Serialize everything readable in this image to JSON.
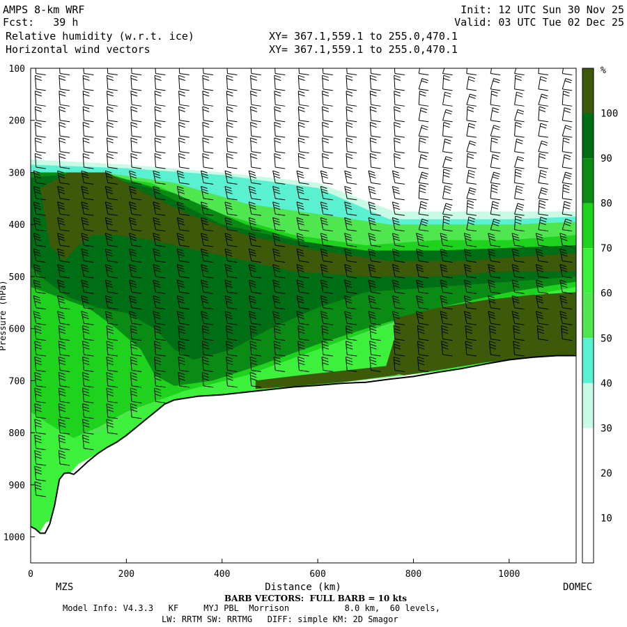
{
  "header": {
    "model": "AMPS 8-km WRF",
    "forecast": "Fcst:   39 h",
    "field1": "Relative humidity (w.r.t. ice)",
    "field2": "Horizontal wind vectors",
    "init": "Init: 12 UTC Sun 30 Nov 25",
    "valid": "Valid: 03 UTC Tue 02 Dec 25",
    "xy1": "XY= 367.1,559.1 to 255.0,470.1",
    "xy2": "XY= 367.1,559.1 to 255.0,470.1"
  },
  "footer": {
    "barb_note": "BARB VECTORS:  FULL BARB = 10 kts",
    "model_info": "Model Info: V4.3.3   KF     MYJ PBL  Morrison           8.0 km,  60 levels,",
    "physics": "LW: RRTM SW: RRTMG   DIFF: simple KM: 2D Smagor"
  },
  "chart_data": {
    "type": "heatmap",
    "title": "Relative humidity (w.r.t. ice)",
    "xlabel": "Distance (km)",
    "ylabel": "Pressure (hPa)",
    "xlim": [
      0,
      1140
    ],
    "ylim": [
      1050,
      100
    ],
    "y_reversed": true,
    "x_ticks": [
      0,
      200,
      400,
      600,
      800,
      1000
    ],
    "y_ticks": [
      100,
      200,
      300,
      400,
      500,
      600,
      700,
      800,
      900,
      1000
    ],
    "endpoint_labels": {
      "left": "MZS",
      "right": "DOMEC"
    },
    "colorbar": {
      "unit": "%",
      "levels": [
        10,
        20,
        30,
        40,
        50,
        60,
        70,
        80,
        90,
        100
      ],
      "colors": [
        "#ffffff",
        "#ffffff",
        "#ffffff",
        "#c8fae6",
        "#5af0d2",
        "#50e650",
        "#3cf03c",
        "#1ed21e",
        "#0a8c14",
        "#006e14",
        "#3c5a0a"
      ]
    },
    "terrain_pressure": [
      {
        "x": 0,
        "p": 980
      },
      {
        "x": 10,
        "p": 985
      },
      {
        "x": 20,
        "p": 993
      },
      {
        "x": 30,
        "p": 993
      },
      {
        "x": 40,
        "p": 975
      },
      {
        "x": 50,
        "p": 940
      },
      {
        "x": 60,
        "p": 890
      },
      {
        "x": 70,
        "p": 878
      },
      {
        "x": 80,
        "p": 877
      },
      {
        "x": 90,
        "p": 880
      },
      {
        "x": 100,
        "p": 872
      },
      {
        "x": 120,
        "p": 855
      },
      {
        "x": 140,
        "p": 840
      },
      {
        "x": 160,
        "p": 828
      },
      {
        "x": 180,
        "p": 818
      },
      {
        "x": 200,
        "p": 805
      },
      {
        "x": 220,
        "p": 790
      },
      {
        "x": 240,
        "p": 775
      },
      {
        "x": 260,
        "p": 760
      },
      {
        "x": 280,
        "p": 745
      },
      {
        "x": 300,
        "p": 737
      },
      {
        "x": 350,
        "p": 730
      },
      {
        "x": 400,
        "p": 727
      },
      {
        "x": 450,
        "p": 722
      },
      {
        "x": 500,
        "p": 717
      },
      {
        "x": 550,
        "p": 712
      },
      {
        "x": 600,
        "p": 709
      },
      {
        "x": 650,
        "p": 705
      },
      {
        "x": 700,
        "p": 703
      },
      {
        "x": 750,
        "p": 697
      },
      {
        "x": 800,
        "p": 692
      },
      {
        "x": 850,
        "p": 684
      },
      {
        "x": 900,
        "p": 677
      },
      {
        "x": 950,
        "p": 668
      },
      {
        "x": 1000,
        "p": 660
      },
      {
        "x": 1050,
        "p": 655
      },
      {
        "x": 1100,
        "p": 652
      },
      {
        "x": 1140,
        "p": 652
      }
    ],
    "top_of_moist_layer": [
      {
        "x": 0,
        "p": 270
      },
      {
        "x": 100,
        "p": 272
      },
      {
        "x": 200,
        "p": 282
      },
      {
        "x": 300,
        "p": 290
      },
      {
        "x": 400,
        "p": 300
      },
      {
        "x": 500,
        "p": 310
      },
      {
        "x": 600,
        "p": 330
      },
      {
        "x": 700,
        "p": 360
      },
      {
        "x": 750,
        "p": 380
      },
      {
        "x": 800,
        "p": 385
      },
      {
        "x": 900,
        "p": 385
      },
      {
        "x": 1000,
        "p": 380
      },
      {
        "x": 1140,
        "p": 375
      }
    ],
    "rh_fields": [
      {
        "name": "rh_30",
        "level": 30,
        "polygon": [
          [
            0,
            275
          ],
          [
            200,
            285
          ],
          [
            400,
            300
          ],
          [
            600,
            320
          ],
          [
            760,
            375
          ],
          [
            1000,
            375
          ],
          [
            1140,
            375
          ],
          [
            1140,
            650
          ],
          [
            0,
            650
          ]
        ]
      },
      {
        "name": "rh_40",
        "level": 40,
        "polygon": [
          [
            0,
            285
          ],
          [
            200,
            292
          ],
          [
            400,
            305
          ],
          [
            600,
            330
          ],
          [
            750,
            390
          ],
          [
            1000,
            390
          ],
          [
            1140,
            385
          ],
          [
            1140,
            652
          ],
          [
            0,
            652
          ]
        ]
      },
      {
        "name": "rh_50",
        "level": 50,
        "polygon": [
          [
            0,
            300
          ],
          [
            150,
            300
          ],
          [
            300,
            320
          ],
          [
            450,
            360
          ],
          [
            600,
            380
          ],
          [
            750,
            400
          ],
          [
            1000,
            400
          ],
          [
            1140,
            395
          ],
          [
            1140,
            652
          ],
          [
            300,
            740
          ],
          [
            180,
            820
          ],
          [
            100,
            850
          ],
          [
            70,
            900
          ],
          [
            40,
            970
          ],
          [
            0,
            980
          ]
        ]
      },
      {
        "name": "rh_60_lower",
        "level": 60,
        "polygon": [
          [
            0,
            740
          ],
          [
            40,
            780
          ],
          [
            80,
            800
          ],
          [
            110,
            800
          ],
          [
            140,
            800
          ],
          [
            190,
            770
          ],
          [
            260,
            740
          ],
          [
            320,
            720
          ],
          [
            400,
            700
          ],
          [
            500,
            670
          ],
          [
            600,
            640
          ],
          [
            700,
            610
          ],
          [
            800,
            580
          ],
          [
            900,
            560
          ],
          [
            1000,
            540
          ],
          [
            1140,
            520
          ],
          [
            1140,
            652
          ],
          [
            300,
            740
          ],
          [
            180,
            820
          ],
          [
            100,
            860
          ],
          [
            60,
            900
          ],
          [
            40,
            960
          ],
          [
            20,
            990
          ],
          [
            0,
            982
          ]
        ]
      },
      {
        "name": "rh_70",
        "level": 70,
        "polygon": [
          [
            0,
            320
          ],
          [
            100,
            300
          ],
          [
            250,
            320
          ],
          [
            400,
            380
          ],
          [
            550,
            420
          ],
          [
            700,
            440
          ],
          [
            850,
            430
          ],
          [
            1000,
            430
          ],
          [
            1140,
            420
          ],
          [
            1140,
            520
          ],
          [
            900,
            560
          ],
          [
            750,
            590
          ],
          [
            600,
            640
          ],
          [
            450,
            690
          ],
          [
            320,
            720
          ],
          [
            260,
            740
          ],
          [
            200,
            760
          ],
          [
            140,
            790
          ],
          [
            90,
            810
          ],
          [
            50,
            790
          ],
          [
            0,
            760
          ]
        ]
      },
      {
        "name": "rh_80",
        "level": 80,
        "polygon": [
          [
            0,
            300
          ],
          [
            150,
            300
          ],
          [
            300,
            340
          ],
          [
            450,
            400
          ],
          [
            600,
            440
          ],
          [
            750,
            470
          ],
          [
            900,
            460
          ],
          [
            1140,
            450
          ],
          [
            1140,
            510
          ],
          [
            1000,
            530
          ],
          [
            850,
            560
          ],
          [
            700,
            600
          ],
          [
            600,
            630
          ],
          [
            480,
            670
          ],
          [
            380,
            700
          ],
          [
            300,
            710
          ],
          [
            260,
            690
          ],
          [
            230,
            640
          ],
          [
            180,
            600
          ],
          [
            120,
            560
          ],
          [
            60,
            540
          ],
          [
            0,
            520
          ]
        ]
      },
      {
        "name": "rh_90",
        "level": 90,
        "polygon": [
          [
            0,
            310
          ],
          [
            120,
            300
          ],
          [
            250,
            330
          ],
          [
            400,
            400
          ],
          [
            550,
            430
          ],
          [
            700,
            450
          ],
          [
            850,
            450
          ],
          [
            1000,
            445
          ],
          [
            1140,
            440
          ],
          [
            1140,
            500
          ],
          [
            1000,
            510
          ],
          [
            850,
            520
          ],
          [
            700,
            530
          ],
          [
            600,
            560
          ],
          [
            500,
            600
          ],
          [
            420,
            640
          ],
          [
            340,
            660
          ],
          [
            300,
            640
          ],
          [
            260,
            600
          ],
          [
            200,
            570
          ],
          [
            140,
            560
          ],
          [
            80,
            540
          ],
          [
            20,
            500
          ],
          [
            0,
            480
          ]
        ]
      },
      {
        "name": "rh_100_upper",
        "level": 100,
        "polygon": [
          [
            20,
            330
          ],
          [
            80,
            300
          ],
          [
            160,
            300
          ],
          [
            240,
            340
          ],
          [
            330,
            380
          ],
          [
            450,
            420
          ],
          [
            600,
            450
          ],
          [
            750,
            470
          ],
          [
            900,
            470
          ],
          [
            1050,
            460
          ],
          [
            1140,
            455
          ],
          [
            1140,
            490
          ],
          [
            1000,
            490
          ],
          [
            850,
            500
          ],
          [
            700,
            500
          ],
          [
            550,
            490
          ],
          [
            450,
            470
          ],
          [
            350,
            450
          ],
          [
            250,
            430
          ],
          [
            180,
            420
          ],
          [
            130,
            420
          ],
          [
            100,
            440
          ],
          [
            70,
            470
          ],
          [
            40,
            440
          ]
        ]
      },
      {
        "name": "rh_100_lower",
        "level": 100,
        "polygon": [
          [
            760,
            580
          ],
          [
            850,
            560
          ],
          [
            950,
            545
          ],
          [
            1050,
            535
          ],
          [
            1140,
            530
          ],
          [
            1140,
            650
          ],
          [
            1050,
            655
          ],
          [
            950,
            665
          ],
          [
            850,
            680
          ],
          [
            780,
            690
          ],
          [
            740,
            680
          ],
          [
            760,
            620
          ]
        ]
      },
      {
        "name": "rh_100_base",
        "level": 100,
        "polygon": [
          [
            470,
            700
          ],
          [
            560,
            690
          ],
          [
            660,
            680
          ],
          [
            760,
            670
          ],
          [
            820,
            675
          ],
          [
            760,
            690
          ],
          [
            660,
            702
          ],
          [
            560,
            710
          ],
          [
            470,
            716
          ]
        ]
      }
    ],
    "wind_columns_x": [
      20,
      70,
      120,
      170,
      220,
      270,
      320,
      370,
      420,
      470,
      520,
      570,
      620,
      670,
      720,
      770,
      820,
      870,
      920,
      970,
      1020,
      1070,
      1120
    ],
    "wind_levels_p": [
      110,
      140,
      170,
      200,
      230,
      260,
      290,
      320,
      350,
      380,
      410,
      440,
      470,
      500,
      530,
      560,
      590,
      620,
      650,
      680,
      710,
      740,
      770,
      800,
      830,
      860,
      890,
      920
    ]
  }
}
